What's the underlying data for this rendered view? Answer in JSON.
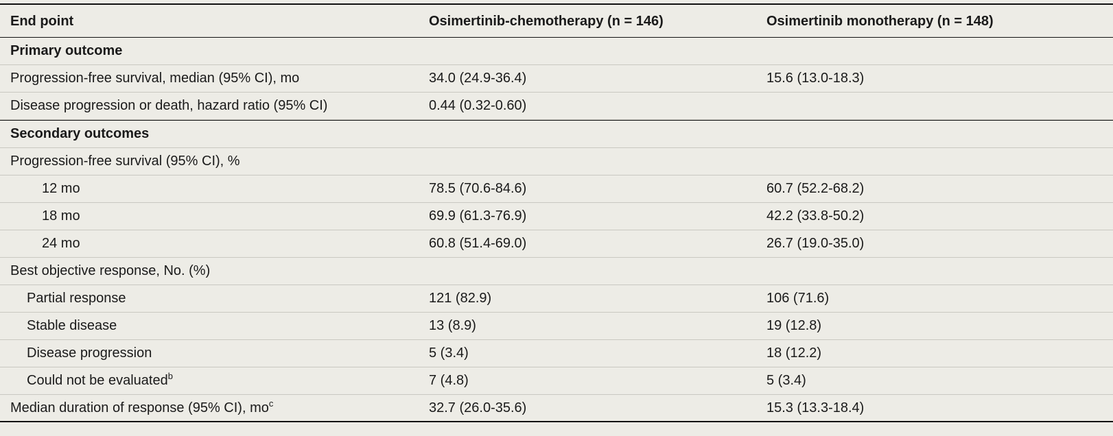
{
  "header": {
    "col1": "End point",
    "col2": "Osimertinib-chemotherapy (n = 146)",
    "col3": "Osimertinib monotherapy (n = 148)"
  },
  "primary": {
    "section_label": "Primary outcome",
    "rows": [
      {
        "label": "Progression-free survival, median (95% CI), mo",
        "chemo": "34.0 (24.9-36.4)",
        "mono": "15.6 (13.0-18.3)"
      },
      {
        "label": "Disease progression or death, hazard ratio (95% CI)",
        "chemo": "0.44 (0.32-0.60)",
        "mono": ""
      }
    ]
  },
  "secondary": {
    "section_label": "Secondary outcomes",
    "pfs_label": "Progression-free survival (95% CI), %",
    "pfs_rows": [
      {
        "label": "12 mo",
        "chemo": "78.5 (70.6-84.6)",
        "mono": "60.7 (52.2-68.2)"
      },
      {
        "label": "18 mo",
        "chemo": "69.9 (61.3-76.9)",
        "mono": "42.2 (33.8-50.2)"
      },
      {
        "label": "24 mo",
        "chemo": "60.8 (51.4-69.0)",
        "mono": "26.7 (19.0-35.0)"
      }
    ],
    "bor_label": "Best objective response, No. (%)",
    "bor_rows": [
      {
        "label": "Partial response",
        "chemo": "121 (82.9)",
        "mono": "106 (71.6)"
      },
      {
        "label": "Stable disease",
        "chemo": "13 (8.9)",
        "mono": "19 (12.8)"
      },
      {
        "label": "Disease progression",
        "chemo": "5 (3.4)",
        "mono": "18 (12.2)"
      },
      {
        "label": "Could not be evaluated",
        "sup": "b",
        "chemo": "7 (4.8)",
        "mono": "5 (3.4)"
      }
    ],
    "dor": {
      "label": "Median duration of response (95% CI), mo",
      "sup": "c",
      "chemo": "32.7 (26.0-35.6)",
      "mono": "15.3 (13.3-18.4)"
    }
  }
}
